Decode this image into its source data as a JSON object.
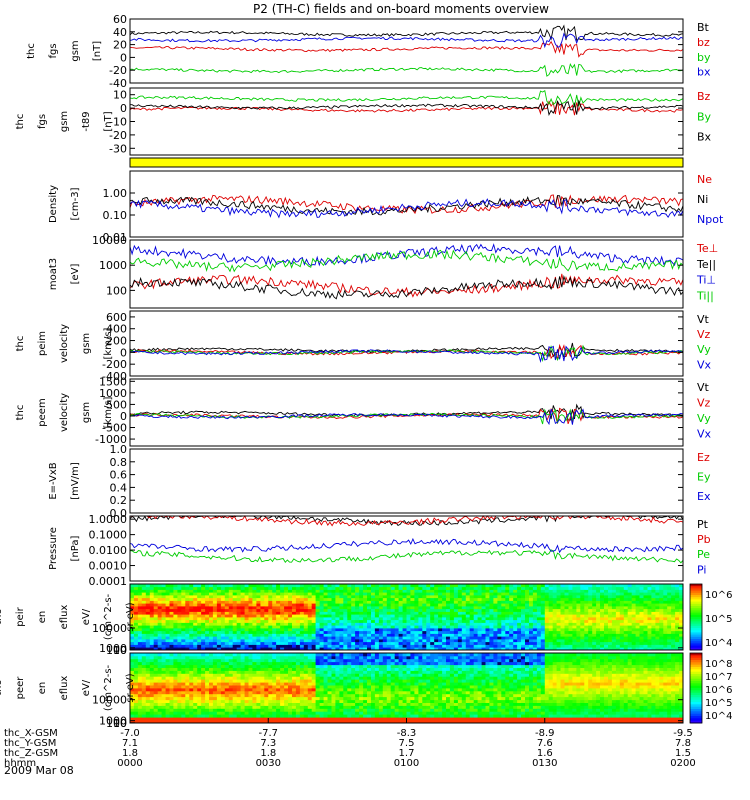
{
  "title": "P2 (TH-C) fields and on-board moments overview",
  "date_label": "2009 Mar 08",
  "colors": {
    "black": "#000000",
    "red": "#dd0000",
    "green": "#00cc00",
    "blue": "#0000dd",
    "yellow": "#ffff00"
  },
  "chart_data": [
    {
      "type": "line",
      "ylabel": [
        "thc",
        "fgs",
        "gsm",
        "[nT]"
      ],
      "yticks": [
        60,
        40,
        20,
        0,
        -20,
        -40
      ],
      "ylim": [
        -40,
        60
      ],
      "series": [
        {
          "name": "Bt",
          "color": "black",
          "level": 37
        },
        {
          "name": "bz",
          "color": "red",
          "level": 13
        },
        {
          "name": "by",
          "color": "green",
          "level": -20
        },
        {
          "name": "bx",
          "color": "blue",
          "level": 28
        }
      ]
    },
    {
      "type": "line",
      "ylabel": [
        "thc",
        "fgs",
        "gsm",
        "-t89",
        "[nT]"
      ],
      "yticks": [
        10,
        0,
        -10,
        -20,
        -30
      ],
      "ylim": [
        -35,
        15
      ],
      "series": [
        {
          "name": "Bz",
          "color": "red",
          "level": -1
        },
        {
          "name": "By",
          "color": "green",
          "level": 7
        },
        {
          "name": "Bx",
          "color": "black",
          "level": 1
        }
      ]
    },
    {
      "type": "area",
      "ylabel": [],
      "yticks": [],
      "ylim": [
        0,
        1
      ],
      "series": []
    },
    {
      "type": "line",
      "log": true,
      "ylabel": [
        "Density",
        "[cm-3]"
      ],
      "yticks": [
        "1.00",
        "0.10",
        "0.01"
      ],
      "ylim": [
        0.01,
        10
      ],
      "series": [
        {
          "name": "Ne",
          "color": "red",
          "level": 0.3
        },
        {
          "name": "Ni",
          "color": "black",
          "level": 0.25
        },
        {
          "name": "Npot",
          "color": "blue",
          "level": 0.2
        }
      ]
    },
    {
      "type": "line",
      "log": true,
      "ylabel": [
        "moat3",
        "[eV]"
      ],
      "yticks": [
        "10000",
        "1000",
        "100"
      ],
      "ylim": [
        20,
        10000
      ],
      "series": [
        {
          "name": "Te⊥",
          "color": "red",
          "level": 150
        },
        {
          "name": "Te||",
          "color": "black",
          "level": 120
        },
        {
          "name": "Ti⊥",
          "color": "blue",
          "level": 2500
        },
        {
          "name": "Ti||",
          "color": "green",
          "level": 1500
        }
      ]
    },
    {
      "type": "line",
      "ylabel": [
        "thc",
        "peim",
        "velocity",
        "gsm",
        "[km/s]"
      ],
      "yticks": [
        600,
        400,
        200,
        0,
        -200,
        -400
      ],
      "ylim": [
        -400,
        700
      ],
      "series": [
        {
          "name": "Vt",
          "color": "black",
          "level": 40
        },
        {
          "name": "Vz",
          "color": "red",
          "level": 0
        },
        {
          "name": "Vy",
          "color": "green",
          "level": 0
        },
        {
          "name": "Vx",
          "color": "blue",
          "level": 0
        }
      ]
    },
    {
      "type": "line",
      "ylabel": [
        "thc",
        "peem",
        "velocity",
        "gsm",
        "[km/s]"
      ],
      "yticks": [
        1500,
        1000,
        500,
        0,
        -500,
        -1000
      ],
      "ylim": [
        -1300,
        1600
      ],
      "series": [
        {
          "name": "Vt",
          "color": "black",
          "level": 100
        },
        {
          "name": "Vz",
          "color": "red",
          "level": 0
        },
        {
          "name": "Vy",
          "color": "green",
          "level": 0
        },
        {
          "name": "Vx",
          "color": "blue",
          "level": 0
        }
      ]
    },
    {
      "type": "line",
      "ylabel": [
        "E=-VxB",
        "[mV/m]"
      ],
      "yticks": [
        "1.0",
        "0.8",
        "0.6",
        "0.4",
        "0.2",
        "0.0"
      ],
      "ylim": [
        0,
        1
      ],
      "series": [
        {
          "name": "Ez",
          "color": "red"
        },
        {
          "name": "Ey",
          "color": "green"
        },
        {
          "name": "Ex",
          "color": "blue"
        }
      ]
    },
    {
      "type": "line",
      "log": true,
      "ylabel": [
        "Pressure",
        "[nPa]"
      ],
      "yticks": [
        "1.0000",
        "0.1000",
        "0.0100",
        "0.0010",
        "0.0001"
      ],
      "ylim": [
        0.0001,
        1.6
      ],
      "series": [
        {
          "name": "Pt",
          "color": "black",
          "level": 1.0
        },
        {
          "name": "Pb",
          "color": "red",
          "level": 0.95
        },
        {
          "name": "Pe",
          "color": "green",
          "level": 0.004
        },
        {
          "name": "Pi",
          "color": "blue",
          "level": 0.02
        }
      ]
    },
    {
      "type": "heatmap",
      "ylabel": [
        "thc",
        "peir",
        "en",
        "eflux",
        "eV/",
        "(cm^2-s-",
        "sr-eV)"
      ],
      "yticks": [
        "10000",
        "1000",
        "100",
        "10"
      ],
      "ylim": [
        10,
        30000
      ],
      "colorbar": [
        "10^6",
        "10^5",
        "10^4"
      ]
    },
    {
      "type": "heatmap",
      "ylabel": [
        "thc",
        "peer",
        "en",
        "eflux",
        "eV/",
        "(cm^2-s-",
        "sr-eV)"
      ],
      "yticks": [
        "10000",
        "1000",
        "100",
        "10"
      ],
      "ylim": [
        8,
        30000
      ],
      "colorbar": [
        "10^8",
        "10^7",
        "10^6",
        "10^5",
        "10^4"
      ]
    }
  ],
  "xaxis": {
    "row_labels": [
      "thc_X-GSM",
      "thc_Y-GSM",
      "thc_Z-GSM",
      "hhmm"
    ],
    "ticks": [
      {
        "frac": 0.0,
        "x": "-7.0",
        "y": "7.1",
        "z": "1.8",
        "t": "0000"
      },
      {
        "frac": 0.25,
        "x": "-7.7",
        "y": "7.3",
        "z": "1.8",
        "t": "0030"
      },
      {
        "frac": 0.5,
        "x": "-8.3",
        "y": "7.5",
        "z": "1.7",
        "t": "0100"
      },
      {
        "frac": 0.75,
        "x": "-8.9",
        "y": "7.6",
        "z": "1.6",
        "t": "0130"
      },
      {
        "frac": 1.0,
        "x": "-9.5",
        "y": "7.8",
        "z": "1.5",
        "t": "0200"
      }
    ]
  }
}
